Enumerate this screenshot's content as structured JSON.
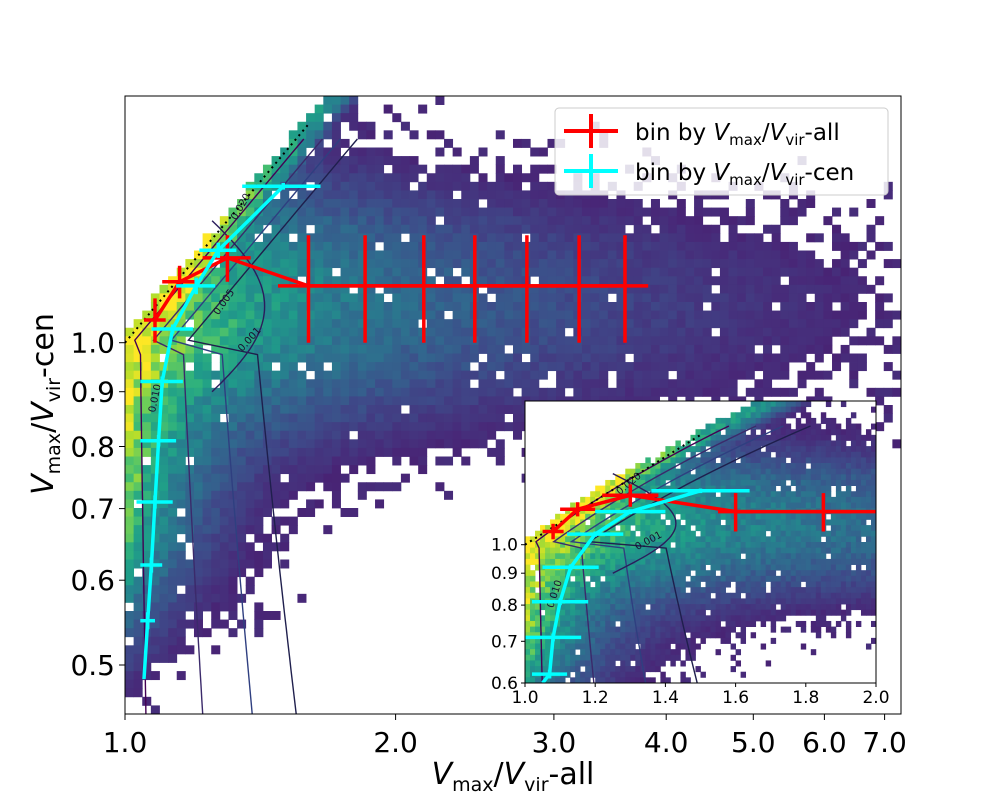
{
  "chart_data": [
    {
      "id": "main",
      "type": "scatter",
      "description_type": "2d-histogram with contours and binned medians",
      "xscale": "log",
      "yscale": "log",
      "xlim": [
        1.0,
        7.3
      ],
      "ylim": [
        0.45,
        1.7
      ],
      "xlabel": {
        "v": "V",
        "sub1": "max",
        "sep": "/",
        "v2": "V",
        "sub2": "vir",
        "suffix": "-all"
      },
      "ylabel": {
        "v": "V",
        "sub1": "max",
        "sep": "/",
        "v2": "V",
        "sub2": "vir",
        "suffix": "-cen"
      },
      "xticks": [
        1.0,
        2.0,
        3.0,
        4.0,
        5.0,
        6.0,
        7.0
      ],
      "xtick_labels": [
        "1.0",
        "2.0",
        "3.0",
        "4.0",
        "5.0",
        "6.0",
        "7.0"
      ],
      "yticks": [
        0.5,
        0.6,
        0.7,
        0.8,
        0.9,
        1.0
      ],
      "ytick_labels": [
        "0.5",
        "0.6",
        "0.7",
        "0.8",
        "0.9",
        "1.0"
      ],
      "contour_labels": [
        "0.010",
        "0.005",
        "0.001",
        "0.020"
      ],
      "legend": {
        "location": "upper right",
        "entries": [
          {
            "prefix": "bin by ",
            "v": "V",
            "sub1": "max",
            "sep": "/",
            "v2": "V",
            "sub2": "vir",
            "suffix": "-all",
            "color": "#ff0000"
          },
          {
            "prefix": "bin by ",
            "v": "V",
            "sub1": "max",
            "sep": "/",
            "v2": "V",
            "sub2": "vir",
            "suffix": "-cen",
            "color": "#00ffff"
          }
        ]
      },
      "series": [
        {
          "name": "bin by Vmax/Vvir-all",
          "color": "#ff0000",
          "x": [
            1.08,
            1.15,
            1.3,
            1.6,
            1.85,
            2.15,
            2.45,
            2.8,
            3.2,
            3.6
          ],
          "y": [
            1.05,
            1.14,
            1.2,
            1.13,
            1.13,
            1.13,
            1.13,
            1.13,
            1.13,
            1.13
          ],
          "xerr": [
            0.03,
            0.05,
            0.08,
            0.12,
            0.14,
            0.16,
            0.18,
            0.2,
            0.22,
            0.22
          ],
          "yerr": [
            0.05,
            0.04,
            0.06,
            0.13,
            0.13,
            0.13,
            0.13,
            0.13,
            0.13,
            0.13
          ]
        },
        {
          "name": "bin by Vmax/Vvir-cen",
          "color": "#00ffff",
          "x": [
            1.05,
            1.06,
            1.07,
            1.08,
            1.09,
            1.1,
            1.13,
            1.2,
            1.27,
            1.5
          ],
          "y": [
            0.485,
            0.55,
            0.62,
            0.71,
            0.81,
            0.92,
            1.03,
            1.13,
            1.22,
            1.4
          ],
          "xerr": [
            0,
            0.02,
            0.03,
            0.05,
            0.05,
            0.06,
            0.06,
            0.06,
            0.06,
            0.15
          ],
          "yerr": [
            0,
            0.01,
            0.01,
            0.01,
            0.01,
            0.01,
            0.01,
            0.02,
            0.02,
            0.01
          ]
        }
      ],
      "reference_line": {
        "name": "one-to-one",
        "x": [
          1.0,
          1.6
        ],
        "y": [
          1.0,
          1.6
        ],
        "style": "dotted",
        "color": "#000000"
      }
    },
    {
      "id": "inset",
      "type": "scatter",
      "description_type": "2d-histogram zoom with binned medians",
      "xscale": "linear",
      "yscale": "log",
      "xlim": [
        1.0,
        2.0
      ],
      "ylim": [
        0.6,
        1.7
      ],
      "xticks": [
        1.0,
        1.2,
        1.4,
        1.6,
        1.8,
        2.0
      ],
      "xtick_labels": [
        "1.0",
        "1.2",
        "1.4",
        "1.6",
        "1.8",
        "2.0"
      ],
      "yticks": [
        0.6,
        0.7,
        0.8,
        0.9,
        1.0
      ],
      "ytick_labels": [
        "0.6",
        "0.7",
        "0.8",
        "0.9",
        "1.0"
      ],
      "contour_labels": [
        "0.010",
        "0.001",
        "0.020"
      ],
      "series": [
        {
          "name": "bin by Vmax/Vvir-all",
          "color": "#ff0000",
          "x": [
            1.08,
            1.15,
            1.3,
            1.6,
            1.85,
            2.0
          ],
          "y": [
            1.05,
            1.14,
            1.2,
            1.13,
            1.13,
            1.13
          ],
          "xerr": [
            0.03,
            0.05,
            0.08,
            0.05,
            0.08,
            0
          ],
          "yerr": [
            0.03,
            0.03,
            0.05,
            0.08,
            0.08,
            0
          ]
        },
        {
          "name": "bin by Vmax/Vvir-cen",
          "color": "#00ffff",
          "x": [
            1.05,
            1.07,
            1.08,
            1.1,
            1.13,
            1.2,
            1.3,
            1.5
          ],
          "y": [
            0.6,
            0.62,
            0.71,
            0.81,
            0.92,
            1.04,
            1.13,
            1.22
          ],
          "xerr": [
            0,
            0.05,
            0.08,
            0.08,
            0.08,
            0.08,
            0.1,
            0.14
          ],
          "yerr": [
            0,
            0.01,
            0.01,
            0.01,
            0.01,
            0.01,
            0.01,
            0.01
          ]
        }
      ],
      "reference_line": {
        "name": "one-to-one",
        "x": [
          1.0,
          1.5
        ],
        "y": [
          1.0,
          1.5
        ],
        "style": "dotted",
        "color": "#000000"
      }
    }
  ]
}
